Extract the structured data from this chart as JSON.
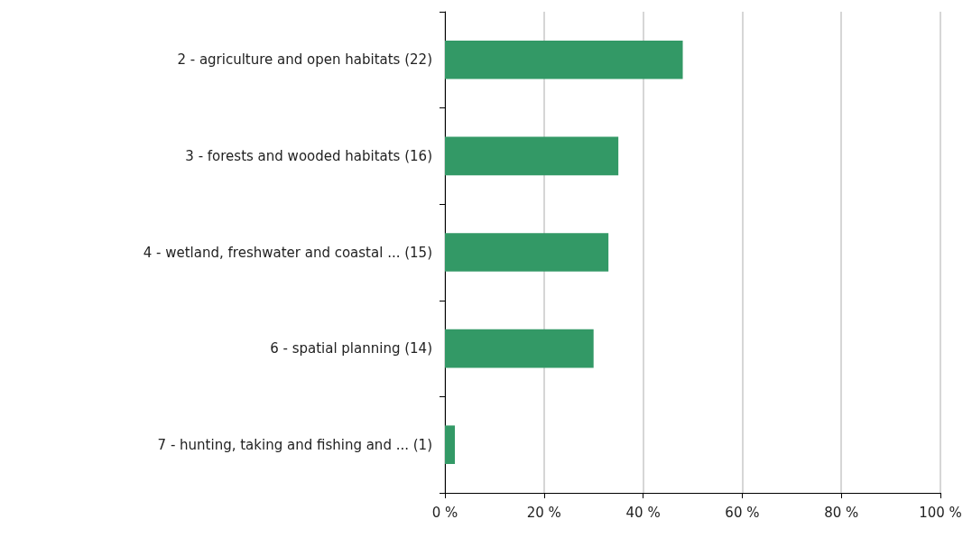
{
  "chart_data": {
    "type": "bar",
    "orientation": "horizontal",
    "categories": [
      "2 - agriculture and open habitats (22)",
      "3 - forests and wooded habitats (16)",
      "4 - wetland, freshwater and coastal ... (15)",
      "6 - spatial planning (14)",
      "7 - hunting, taking and fishing and ... (1)"
    ],
    "values": [
      48,
      35,
      33,
      30,
      2
    ],
    "color": "#339966",
    "xlim": [
      0,
      100
    ],
    "xticks": [
      {
        "value": 0,
        "label": "0 %"
      },
      {
        "value": 20,
        "label": "20 %"
      },
      {
        "value": 40,
        "label": "40 %"
      },
      {
        "value": 60,
        "label": "60 %"
      },
      {
        "value": 80,
        "label": "80 %"
      },
      {
        "value": 100,
        "label": "100 %"
      }
    ],
    "grid": "x"
  }
}
